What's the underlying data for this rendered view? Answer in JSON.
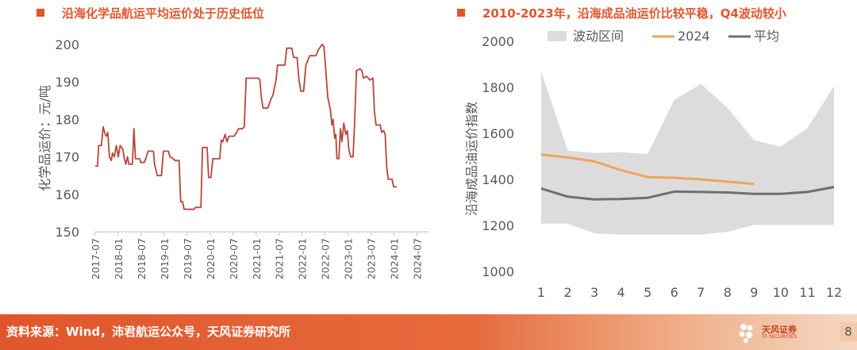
{
  "left_panel": {
    "title": "沿海化学品航运平均运价处于历史低位",
    "marker_color": "#e0562c"
  },
  "right_panel": {
    "title": "2010-2023年，沿海成品油运价比较平稳，Q4波动较小",
    "marker_color": "#e0562c"
  },
  "footer": {
    "source": "资料来源：Wind，沛君航运公众号，天风证券研究所",
    "logo_cn": "天风证券",
    "logo_en": "TF SECURITIES",
    "page_number": "8"
  },
  "chart_data": [
    {
      "type": "line",
      "title": "",
      "ylabel": "化学品运价：元/吨",
      "xlabel": "",
      "ylim": [
        150,
        200
      ],
      "yticks": [
        150,
        160,
        170,
        180,
        190,
        200
      ],
      "xlim": [
        0,
        87
      ],
      "xtick_labels": [
        "2017-07",
        "2018-01",
        "2018-07",
        "2019-01",
        "2019-07",
        "2020-01",
        "2020-07",
        "2021-01",
        "2021-07",
        "2022-01",
        "2022-07",
        "2023-01",
        "2023-07",
        "2024-01",
        "2024-07"
      ],
      "grid": false,
      "color": "#b5473b",
      "series": [
        {
          "name": "",
          "points": [
            [
              0,
              167.5
            ],
            [
              0.6,
              167.5
            ],
            [
              0.9,
              173
            ],
            [
              1.6,
              173
            ],
            [
              2.1,
              178
            ],
            [
              2.6,
              176
            ],
            [
              2.9,
              175.5
            ],
            [
              3.3,
              176.5
            ],
            [
              3.7,
              170
            ],
            [
              4.2,
              169
            ],
            [
              4.5,
              171
            ],
            [
              5,
              170
            ],
            [
              5.5,
              173
            ],
            [
              6,
              170
            ],
            [
              6.5,
              173
            ],
            [
              7.2,
              172
            ],
            [
              7.6,
              169.5
            ],
            [
              8,
              168
            ],
            [
              8.4,
              170
            ],
            [
              8.8,
              168
            ],
            [
              9.7,
              168
            ],
            [
              10.1,
              177.5
            ],
            [
              10.5,
              169.5
            ],
            [
              11.6,
              169.5
            ],
            [
              11.9,
              168.5
            ],
            [
              12.8,
              168.5
            ],
            [
              13.2,
              169.5
            ],
            [
              13.8,
              171.5
            ],
            [
              15.2,
              171.5
            ],
            [
              15.5,
              168
            ],
            [
              16.2,
              165
            ],
            [
              17.3,
              165
            ],
            [
              17.8,
              171.5
            ],
            [
              19.1,
              171.5
            ],
            [
              19.5,
              170
            ],
            [
              20.4,
              169.5
            ],
            [
              20.8,
              169
            ],
            [
              21.9,
              169
            ],
            [
              22.3,
              158
            ],
            [
              22.8,
              158
            ],
            [
              23.2,
              156
            ],
            [
              25.8,
              156
            ],
            [
              26.2,
              156.5
            ],
            [
              27.6,
              156.5
            ],
            [
              28,
              172.5
            ],
            [
              29.2,
              172.5
            ],
            [
              29.6,
              164.5
            ],
            [
              30.2,
              164.5
            ],
            [
              30.7,
              169.5
            ],
            [
              32.5,
              169.5
            ],
            [
              32.9,
              174.5
            ],
            [
              33.3,
              174
            ],
            [
              33.9,
              176
            ],
            [
              34.4,
              174
            ],
            [
              34.9,
              175.5
            ],
            [
              36.3,
              175.5
            ],
            [
              36.9,
              176.5
            ],
            [
              37.4,
              177.5
            ],
            [
              38.4,
              177.5
            ],
            [
              38.9,
              178
            ],
            [
              39.4,
              191
            ],
            [
              42.6,
              191
            ],
            [
              43,
              190.5
            ],
            [
              43.3,
              186.5
            ],
            [
              43.8,
              183
            ],
            [
              45,
              183
            ],
            [
              45.4,
              184
            ],
            [
              45.9,
              185.5
            ],
            [
              46.4,
              186.5
            ],
            [
              46.8,
              188.5
            ],
            [
              47.2,
              190.5
            ],
            [
              47.6,
              194.5
            ],
            [
              49.5,
              194.5
            ],
            [
              50,
              199
            ],
            [
              51.3,
              199
            ],
            [
              51.8,
              196.5
            ],
            [
              52.7,
              196.5
            ],
            [
              53.2,
              190.5
            ],
            [
              53.7,
              187.5
            ],
            [
              54.4,
              187.5
            ],
            [
              55,
              194.5
            ],
            [
              56,
              197
            ],
            [
              57.6,
              197
            ],
            [
              58.2,
              198.5
            ],
            [
              59.2,
              200
            ],
            [
              59.7,
              199.5
            ],
            [
              60.2,
              193
            ],
            [
              60.7,
              186
            ],
            [
              61.4,
              182.5
            ],
            [
              61.8,
              178.5
            ],
            [
              62.1,
              180
            ],
            [
              62.5,
              175
            ],
            [
              62.8,
              176
            ],
            [
              63.1,
              169.5
            ],
            [
              63.6,
              169.5
            ],
            [
              64,
              177.5
            ],
            [
              64.4,
              174
            ],
            [
              64.9,
              179
            ],
            [
              65.4,
              176
            ],
            [
              65.8,
              177
            ],
            [
              66.2,
              172
            ],
            [
              66.7,
              170
            ],
            [
              67.3,
              170
            ],
            [
              67.7,
              178.5
            ],
            [
              68.2,
              193
            ],
            [
              69.1,
              193.5
            ],
            [
              69.6,
              193
            ],
            [
              70,
              191
            ],
            [
              70.8,
              191.5
            ],
            [
              71.3,
              191
            ],
            [
              71.7,
              190.5
            ],
            [
              72.5,
              191
            ],
            [
              72.9,
              182
            ],
            [
              73.3,
              178.5
            ],
            [
              74.4,
              178.5
            ],
            [
              74.8,
              176.5
            ],
            [
              75.3,
              177
            ],
            [
              75.7,
              176
            ],
            [
              76.1,
              167
            ],
            [
              76.5,
              164
            ],
            [
              77.5,
              164
            ],
            [
              77.9,
              162
            ],
            [
              78.7,
              162
            ]
          ]
        }
      ]
    },
    {
      "type": "area",
      "title": "",
      "ylabel": "沿海成品油运价指数",
      "xlabel": "",
      "ylim": [
        1000,
        2000
      ],
      "yticks": [
        1000,
        1200,
        1400,
        1600,
        1800,
        2000
      ],
      "categories": [
        1,
        2,
        3,
        4,
        5,
        6,
        7,
        8,
        9,
        10,
        11,
        12
      ],
      "legend_position": "top",
      "grid": false,
      "band": {
        "name": "波动区间",
        "color": "#dcdcdc",
        "upper": [
          1870,
          1525,
          1515,
          1518,
          1510,
          1745,
          1815,
          1710,
          1570,
          1542,
          1622,
          1805
        ],
        "lower": [
          1208,
          1208,
          1165,
          1160,
          1160,
          1160,
          1160,
          1172,
          1202,
          1202,
          1202,
          1202
        ]
      },
      "series": [
        {
          "name": "2024",
          "color": "#f0a35e",
          "values": [
            1508,
            1495,
            1478,
            1440,
            1410,
            1407,
            1400,
            1390,
            1380,
            null,
            null,
            null
          ]
        },
        {
          "name": "平均",
          "color": "#6f6f6f",
          "values": [
            1360,
            1325,
            1313,
            1315,
            1320,
            1347,
            1345,
            1343,
            1337,
            1337,
            1345,
            1367
          ]
        }
      ]
    }
  ]
}
